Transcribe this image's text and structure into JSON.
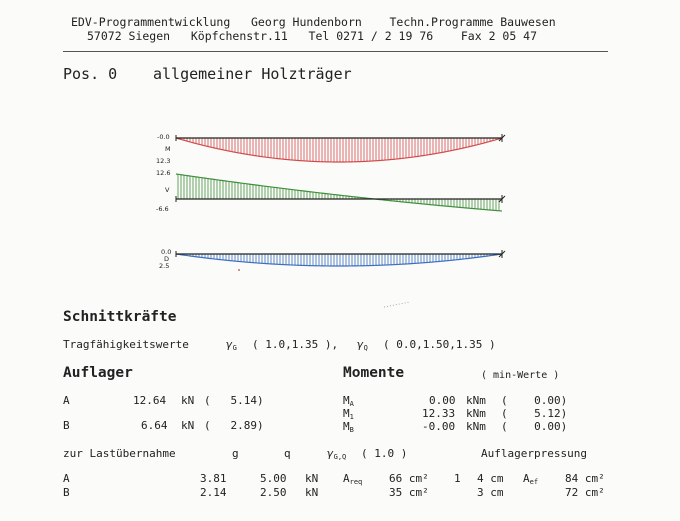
{
  "header": {
    "line1": "EDV-Programmentwicklung   Georg Hundenborn    Techn.Programme Bauwesen",
    "line2": "57072 Siegen   Köpfchenstr.11   Tel 0271 / 2 19 76    Fax 2 05 47"
  },
  "position": {
    "label": "Pos. 0",
    "title": "allgemeiner Holzträger"
  },
  "diagrams": {
    "moment": {
      "top": "-0.0",
      "name": "M",
      "bottom": "12.3",
      "color": "#d24b4b"
    },
    "shear": {
      "top": "12.6",
      "name": "V",
      "bottom": "-6.6",
      "color": "#3f8f3a"
    },
    "deflection": {
      "top": "0.0",
      "name": "D",
      "bottom": "2.5",
      "color": "#3c6fbf"
    }
  },
  "schnitt": {
    "title": "Schnittkräfte",
    "trag_prefix": "Tragfähigkeitswerte",
    "gamma": "γ",
    "sub_g": "G",
    "trag_g": "( 1.0,1.35 ),",
    "sub_q": "Q",
    "trag_q": "( 0.0,1.50,1.35 )"
  },
  "auflager": {
    "title": "Auflager",
    "rows": [
      {
        "name": "A",
        "value": "12.64",
        "unit": "kN",
        "paren": "(   5.14)"
      },
      {
        "name": "B",
        "value": "6.64",
        "unit": "kN",
        "paren": "(   2.89)"
      }
    ]
  },
  "momente": {
    "title": "Momente",
    "note": "( min-Werte )",
    "rows": [
      {
        "name": "M",
        "sub": "A",
        "value": "0.00",
        "unit": "kNm",
        "paren": "(    0.00)"
      },
      {
        "name": "M",
        "sub": "1",
        "value": "12.33",
        "unit": "kNm",
        "paren": "(    5.12)"
      },
      {
        "name": "M",
        "sub": "B",
        "value": "-0.00",
        "unit": "kNm",
        "paren": "(    0.00)"
      }
    ]
  },
  "lastabnahme": {
    "label": "zur Lastübernahme",
    "col_g": "g",
    "col_q": "q",
    "gamma": "γ",
    "gamma_sub": "G,Q",
    "gamma_val": "( 1.0 )",
    "pressure_title": "Auflagerpressung",
    "rows": [
      {
        "name": "A",
        "g": "3.81",
        "q": "5.00",
        "unit": "kN",
        "areq_label": "A",
        "areq_sub": "req",
        "areq": "66 cm²",
        "n": "1",
        "len": "4 cm",
        "aef_label": "A",
        "aef_sub": "ef",
        "aef": "84 cm²"
      },
      {
        "name": "B",
        "g": "2.14",
        "q": "2.50",
        "unit": "kN",
        "areq_label": "",
        "areq_sub": "",
        "areq": "35 cm²",
        "n": "",
        "len": "3 cm",
        "aef_label": "",
        "aef_sub": "",
        "aef": "72 cm²"
      }
    ]
  }
}
